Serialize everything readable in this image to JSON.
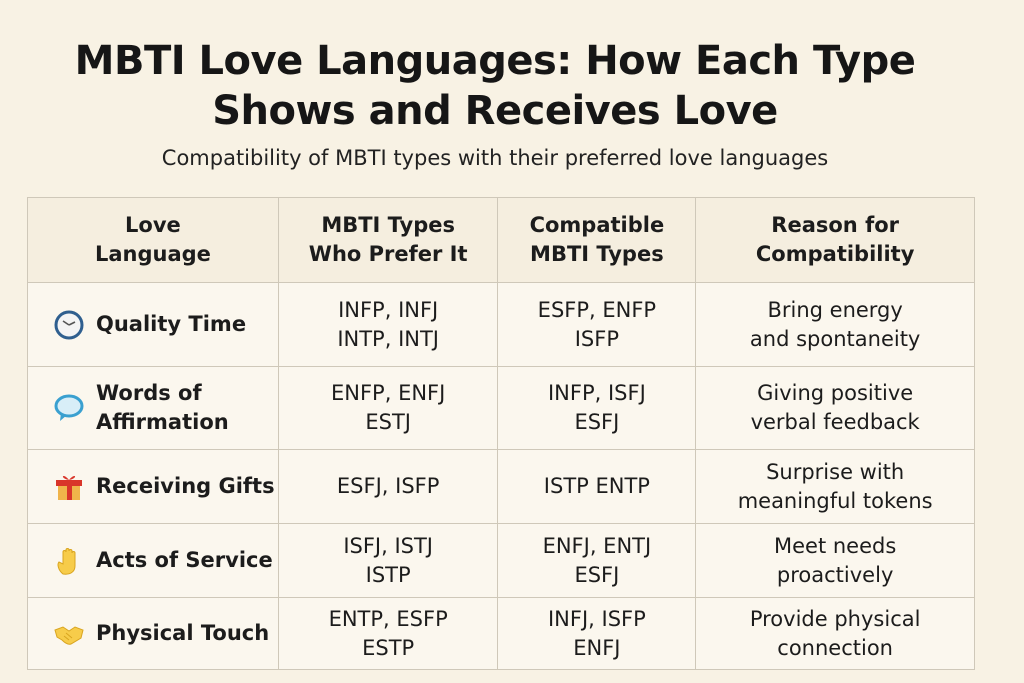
{
  "title": "MBTI Love Languages: How Each Type\nShows and Receives Love",
  "subtitle": "Compatibility of MBTI types with their preferred love languages",
  "table": {
    "headers": [
      "Love\nLanguage",
      "MBTI Types\nWho Prefer It",
      "Compatible\nMBTI Types",
      "Reason for\nCompatibility"
    ],
    "rows": [
      {
        "icon": "clock-icon",
        "language": "Quality Time",
        "prefer": "INFP, INFJ\nINTP, INTJ",
        "compatible": "ESFP, ENFP\nISFP",
        "reason": "Bring energy\nand spontaneity"
      },
      {
        "icon": "speech-bubble-icon",
        "language": "Words of\nAffirmation",
        "prefer": "ENFP, ENFJ\nESTJ",
        "compatible": "INFP, ISFJ\nESFJ",
        "reason": "Giving positive\nverbal feedback"
      },
      {
        "icon": "gift-icon",
        "language": "Receiving Gifts",
        "prefer": "ESFJ, ISFP",
        "compatible": "ISTP  ENTP",
        "reason": "Surprise with\nmeaningful tokens"
      },
      {
        "icon": "raised-hand-icon",
        "language": "Acts of Service",
        "prefer": "ISFJ, ISTJ\nISTP",
        "compatible": "ENFJ, ENTJ\nESFJ",
        "reason": "Meet needs\nproactively"
      },
      {
        "icon": "handshake-icon",
        "language": "Physical Touch",
        "prefer": "ENTP, ESFP\nESTP",
        "compatible": "INFJ, ISFP\nENFJ",
        "reason": "Provide physical\nconnection"
      }
    ]
  }
}
